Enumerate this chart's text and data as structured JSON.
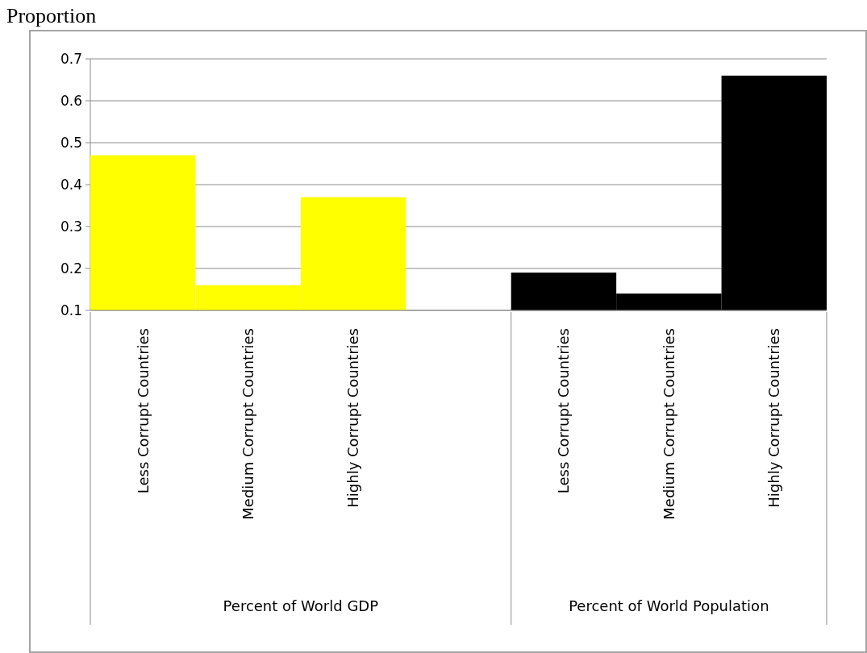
{
  "chart_data": {
    "type": "bar",
    "ylabel": "Proportion",
    "categories": [
      "Less Corrupt Countries",
      "Medium Corrupt Countries",
      "Highly Corrupt Countries",
      null,
      "Less Corrupt Countries",
      "Medium Corrupt Countries",
      "Highly Corrupt Countries"
    ],
    "values": [
      0.47,
      0.16,
      0.37,
      null,
      0.19,
      0.14,
      0.66
    ],
    "colors": [
      "#ffff00",
      "#ffff00",
      "#ffff00",
      null,
      "#000000",
      "#000000",
      "#000000"
    ],
    "annotations": [
      "Percent of World GDP",
      "Percent of World Population"
    ],
    "ylim": [
      0.1,
      0.7
    ],
    "yticks": [
      0.1,
      0.2,
      0.3,
      0.4,
      0.5,
      0.6,
      0.7
    ],
    "grid": "y"
  }
}
